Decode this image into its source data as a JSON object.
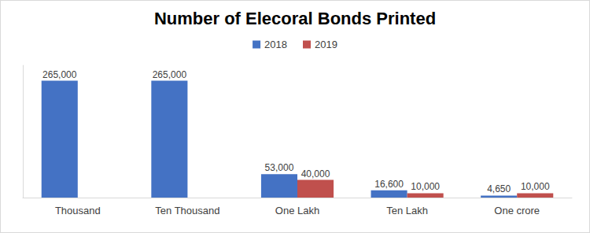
{
  "chart_data": {
    "type": "bar",
    "title": "Number of Elecoral Bonds Printed",
    "categories": [
      "Thousand",
      "Ten Thousand",
      "One Lakh",
      "Ten Lakh",
      "One crore"
    ],
    "series": [
      {
        "name": "2018",
        "color": "#4472c4",
        "values": [
          265000,
          265000,
          53000,
          16600,
          4650
        ],
        "value_labels": [
          "265,000",
          "265,000",
          "53,000",
          "16,600",
          "4,650"
        ]
      },
      {
        "name": "2019",
        "color": "#c0504d",
        "values": [
          null,
          null,
          40000,
          10000,
          10000
        ],
        "value_labels": [
          null,
          null,
          "40,000",
          "10,000",
          "10,000"
        ]
      }
    ],
    "ylim": [
      0,
      300000
    ],
    "legend": "top",
    "grid": false,
    "data_labels": true,
    "tick_labels": "x"
  }
}
